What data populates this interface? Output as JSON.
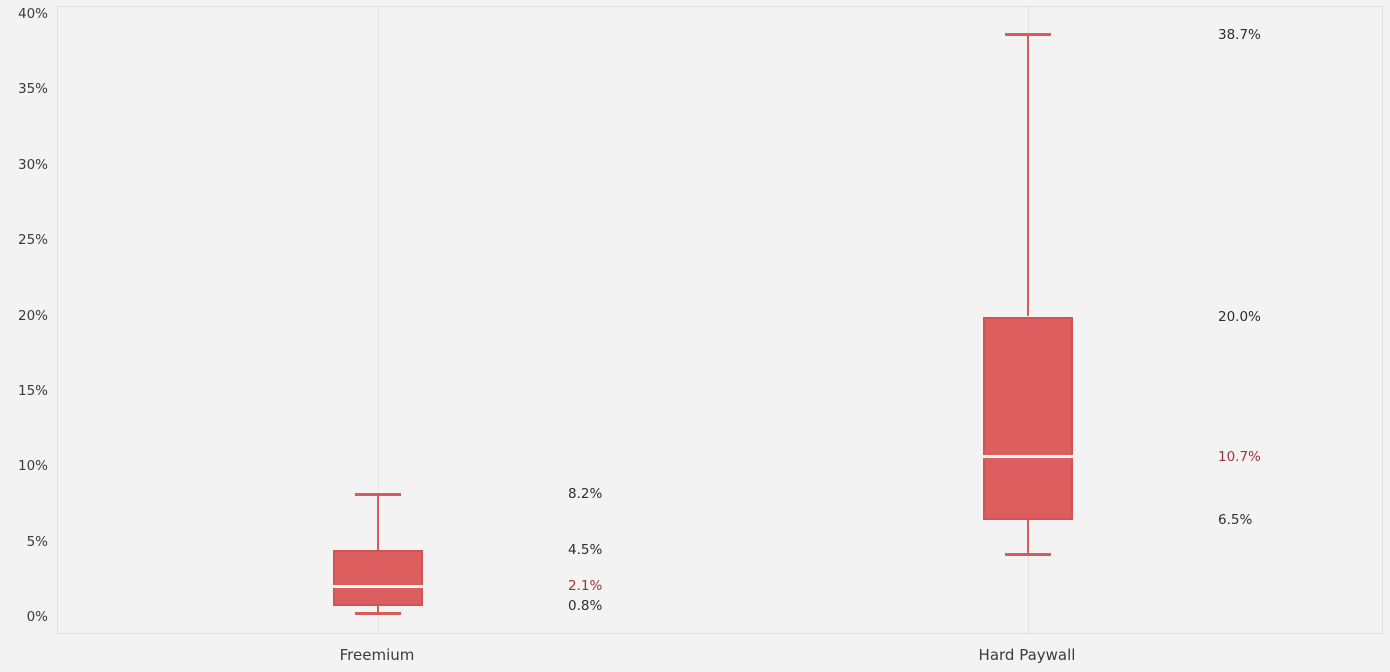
{
  "chart_data": {
    "type": "box",
    "title": "",
    "xlabel": "",
    "ylabel": "",
    "categories": [
      "Freemium",
      "Hard Paywall"
    ],
    "ylim": [
      0,
      40
    ],
    "yticks": [
      "40%",
      "35%",
      "30%",
      "25%",
      "20%",
      "15%",
      "10%",
      "5%",
      "0%"
    ],
    "ytick_values": [
      40,
      35,
      30,
      25,
      20,
      15,
      10,
      5,
      0
    ],
    "grid": "vertical category gridlines only",
    "legend": "none",
    "series": [
      {
        "category": "Freemium",
        "whisker_low": 0.3,
        "q1": 0.8,
        "median": 2.1,
        "q3": 4.5,
        "whisker_high": 8.2,
        "labels": [
          {
            "text": "8.2%",
            "value": 8.2,
            "emphasis": false
          },
          {
            "text": "4.5%",
            "value": 4.5,
            "emphasis": false
          },
          {
            "text": "2.1%",
            "value": 2.1,
            "emphasis": true
          },
          {
            "text": "0.8%",
            "value": 0.8,
            "emphasis": false
          }
        ]
      },
      {
        "category": "Hard Paywall",
        "whisker_low": 4.2,
        "q1": 6.5,
        "median": 10.7,
        "q3": 20.0,
        "whisker_high": 38.7,
        "labels": [
          {
            "text": "38.7%",
            "value": 38.7,
            "emphasis": false
          },
          {
            "text": "20.0%",
            "value": 20.0,
            "emphasis": false
          },
          {
            "text": "10.7%",
            "value": 10.7,
            "emphasis": true
          },
          {
            "text": "6.5%",
            "value": 6.5,
            "emphasis": false
          }
        ]
      }
    ],
    "colors": {
      "background": "#f4f3f3",
      "plot_border": "#dddbdb",
      "gridline": "#e4e2e2",
      "box_fill": "#dd5e5e",
      "box_edge": "#d45252",
      "whisker": "#d95a5a",
      "median_line": "#f6f4f4",
      "label_text": "#2e2e2e",
      "median_label_text": "#9e3535",
      "axis_text": "#3b3b3b"
    }
  }
}
